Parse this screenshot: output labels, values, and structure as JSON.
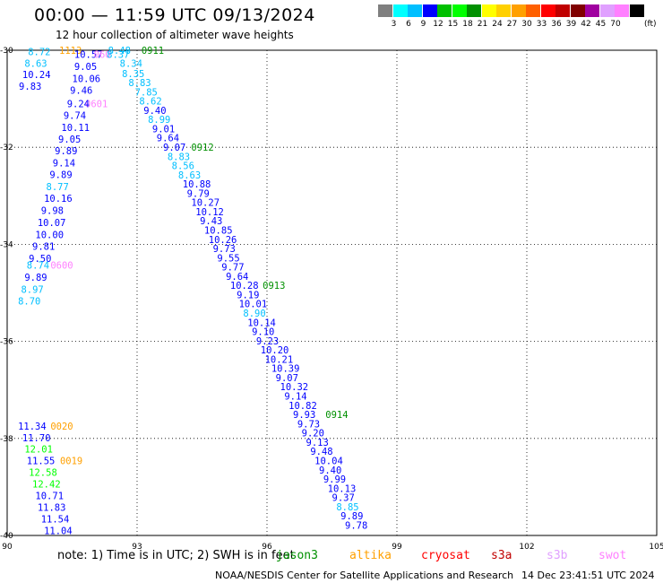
{
  "header": {
    "title": "00:00 — 11:59 UTC 09/13/2024",
    "subtitle": "12 hour collection of altimeter wave heights"
  },
  "colorbar": {
    "colors": [
      "#7f7f7f",
      "#00ffff",
      "#00bfff",
      "#0000ff",
      "#00c000",
      "#00ff00",
      "#009000",
      "#ffff00",
      "#ffd000",
      "#ffa000",
      "#ff6000",
      "#ff0000",
      "#c00000",
      "#800000",
      "#a000a0",
      "#e0a0ff",
      "#ff80ff",
      "#000000"
    ],
    "ticks": [
      "3",
      "6",
      "9",
      "12",
      "15",
      "18",
      "21",
      "24",
      "27",
      "30",
      "33",
      "36",
      "39",
      "42",
      "45",
      "70"
    ],
    "units": "(ft)"
  },
  "axes": {
    "x_ticks": [
      "90",
      "93",
      "96",
      "99",
      "102",
      "105"
    ],
    "y_ticks": [
      "-30",
      "-32",
      "-34",
      "-36",
      "-38",
      "-40"
    ]
  },
  "chart_data": {
    "type": "scatter",
    "title": "00:00 — 11:59 UTC 09/13/2024",
    "subtitle": "12 hour collection of altimeter wave heights",
    "xlim": [
      90,
      105
    ],
    "ylim": [
      -40,
      -30
    ],
    "units": "ft",
    "grid": true,
    "labels": [
      {
        "text": "8.72",
        "x": 90.48,
        "y": -30.1,
        "color": "#00bfff"
      },
      {
        "text": "8.63",
        "x": 90.4,
        "y": -30.34,
        "color": "#00bfff"
      },
      {
        "text": "10.24",
        "x": 90.35,
        "y": -30.57,
        "color": "#0000ff"
      },
      {
        "text": "9.83",
        "x": 90.27,
        "y": -30.81,
        "color": "#0000ff"
      },
      {
        "text": "1113",
        "x": 91.2,
        "y": -30.07,
        "color": "#ffa000"
      },
      {
        "text": "10.57",
        "x": 91.55,
        "y": -30.16,
        "color": "#0000ff"
      },
      {
        "text": "9.05",
        "x": 91.55,
        "y": -30.41,
        "color": "#0000ff"
      },
      {
        "text": "10.06",
        "x": 91.5,
        "y": -30.66,
        "color": "#0000ff"
      },
      {
        "text": "9.46",
        "x": 91.45,
        "y": -30.9,
        "color": "#0000ff"
      },
      {
        "text": "0601",
        "x": 91.8,
        "y": -31.17,
        "color": "#ff80ff"
      },
      {
        "text": "9.24",
        "x": 91.38,
        "y": -31.17,
        "color": "#0000ff"
      },
      {
        "text": "9.74",
        "x": 91.3,
        "y": -31.41,
        "color": "#0000ff"
      },
      {
        "text": "10.11",
        "x": 91.25,
        "y": -31.66,
        "color": "#0000ff"
      },
      {
        "text": "9.05",
        "x": 91.18,
        "y": -31.9,
        "color": "#0000ff"
      },
      {
        "text": "9.89",
        "x": 91.1,
        "y": -32.14,
        "color": "#0000ff"
      },
      {
        "text": "9.14",
        "x": 91.05,
        "y": -32.39,
        "color": "#0000ff"
      },
      {
        "text": "9.89",
        "x": 90.98,
        "y": -32.63,
        "color": "#0000ff"
      },
      {
        "text": "8.77",
        "x": 90.9,
        "y": -32.88,
        "color": "#00bfff"
      },
      {
        "text": "10.16",
        "x": 90.85,
        "y": -33.12,
        "color": "#0000ff"
      },
      {
        "text": "9.98",
        "x": 90.78,
        "y": -33.37,
        "color": "#0000ff"
      },
      {
        "text": "10.07",
        "x": 90.7,
        "y": -33.62,
        "color": "#0000ff"
      },
      {
        "text": "10.00",
        "x": 90.65,
        "y": -33.87,
        "color": "#0000ff"
      },
      {
        "text": "9.81",
        "x": 90.58,
        "y": -34.11,
        "color": "#0000ff"
      },
      {
        "text": "9.50",
        "x": 90.5,
        "y": -34.36,
        "color": "#0000ff"
      },
      {
        "text": "8.74",
        "x": 90.45,
        "y": -34.5,
        "color": "#00bfff"
      },
      {
        "text": "0600",
        "x": 91.0,
        "y": -34.5,
        "color": "#ff80ff"
      },
      {
        "text": "9.89",
        "x": 90.4,
        "y": -34.75,
        "color": "#0000ff"
      },
      {
        "text": "8.97",
        "x": 90.32,
        "y": -35.0,
        "color": "#00bfff"
      },
      {
        "text": "8.70",
        "x": 90.25,
        "y": -35.24,
        "color": "#00bfff"
      },
      {
        "text": "8.48",
        "x": 92.33,
        "y": -30.07,
        "color": "#00bfff"
      },
      {
        "text": "0911",
        "x": 93.1,
        "y": -30.07,
        "color": "#009000"
      },
      {
        "text": "060",
        "x": 92.0,
        "y": -30.16,
        "color": "#ff80ff"
      },
      {
        "text": "8.37",
        "x": 92.3,
        "y": -30.16,
        "color": "#00bfff"
      },
      {
        "text": "8.34",
        "x": 92.6,
        "y": -30.34,
        "color": "#00bfff"
      },
      {
        "text": "8.35",
        "x": 92.65,
        "y": -30.55,
        "color": "#00bfff"
      },
      {
        "text": "8.83",
        "x": 92.8,
        "y": -30.74,
        "color": "#00bfff"
      },
      {
        "text": "7.85",
        "x": 92.95,
        "y": -30.93,
        "color": "#00bfff"
      },
      {
        "text": "8.62",
        "x": 93.05,
        "y": -31.12,
        "color": "#00bfff"
      },
      {
        "text": "9.40",
        "x": 93.15,
        "y": -31.31,
        "color": "#0000ff"
      },
      {
        "text": "8.99",
        "x": 93.25,
        "y": -31.5,
        "color": "#00bfff"
      },
      {
        "text": "9.01",
        "x": 93.35,
        "y": -31.69,
        "color": "#0000ff"
      },
      {
        "text": "9.64",
        "x": 93.45,
        "y": -31.88,
        "color": "#0000ff"
      },
      {
        "text": "9.07",
        "x": 93.6,
        "y": -32.07,
        "color": "#0000ff"
      },
      {
        "text": "0912",
        "x": 94.25,
        "y": -32.07,
        "color": "#009000"
      },
      {
        "text": "8.83",
        "x": 93.7,
        "y": -32.26,
        "color": "#00bfff"
      },
      {
        "text": "8.56",
        "x": 93.8,
        "y": -32.45,
        "color": "#00bfff"
      },
      {
        "text": "8.63",
        "x": 93.95,
        "y": -32.64,
        "color": "#00bfff"
      },
      {
        "text": "10.88",
        "x": 94.05,
        "y": -32.83,
        "color": "#0000ff"
      },
      {
        "text": "9.79",
        "x": 94.15,
        "y": -33.02,
        "color": "#0000ff"
      },
      {
        "text": "10.27",
        "x": 94.25,
        "y": -33.21,
        "color": "#0000ff"
      },
      {
        "text": "10.12",
        "x": 94.35,
        "y": -33.4,
        "color": "#0000ff"
      },
      {
        "text": "9.43",
        "x": 94.45,
        "y": -33.59,
        "color": "#0000ff"
      },
      {
        "text": "10.85",
        "x": 94.55,
        "y": -33.78,
        "color": "#0000ff"
      },
      {
        "text": "10.26",
        "x": 94.65,
        "y": -33.97,
        "color": "#0000ff"
      },
      {
        "text": "9.73",
        "x": 94.75,
        "y": -34.16,
        "color": "#0000ff"
      },
      {
        "text": "9.55",
        "x": 94.85,
        "y": -34.35,
        "color": "#0000ff"
      },
      {
        "text": "9.77",
        "x": 94.95,
        "y": -34.54,
        "color": "#0000ff"
      },
      {
        "text": "9.64",
        "x": 95.05,
        "y": -34.73,
        "color": "#0000ff"
      },
      {
        "text": "10.28",
        "x": 95.15,
        "y": -34.92,
        "color": "#0000ff"
      },
      {
        "text": "0913",
        "x": 95.9,
        "y": -34.92,
        "color": "#009000"
      },
      {
        "text": "9.19",
        "x": 95.3,
        "y": -35.11,
        "color": "#0000ff"
      },
      {
        "text": "10.01",
        "x": 95.35,
        "y": -35.3,
        "color": "#0000ff"
      },
      {
        "text": "8.90",
        "x": 95.45,
        "y": -35.49,
        "color": "#00bfff"
      },
      {
        "text": "10.14",
        "x": 95.55,
        "y": -35.68,
        "color": "#0000ff"
      },
      {
        "text": "9.10",
        "x": 95.65,
        "y": -35.87,
        "color": "#0000ff"
      },
      {
        "text": "9.23",
        "x": 95.75,
        "y": -36.06,
        "color": "#0000ff"
      },
      {
        "text": "10.20",
        "x": 95.85,
        "y": -36.25,
        "color": "#0000ff"
      },
      {
        "text": "10.21",
        "x": 95.95,
        "y": -36.44,
        "color": "#0000ff"
      },
      {
        "text": "10.39",
        "x": 96.1,
        "y": -36.63,
        "color": "#0000ff"
      },
      {
        "text": "9.07",
        "x": 96.2,
        "y": -36.82,
        "color": "#0000ff"
      },
      {
        "text": "10.32",
        "x": 96.3,
        "y": -37.01,
        "color": "#0000ff"
      },
      {
        "text": "9.14",
        "x": 96.4,
        "y": -37.2,
        "color": "#0000ff"
      },
      {
        "text": "10.82",
        "x": 96.5,
        "y": -37.39,
        "color": "#0000ff"
      },
      {
        "text": "9.93",
        "x": 96.6,
        "y": -37.58,
        "color": "#0000ff"
      },
      {
        "text": "0914",
        "x": 97.35,
        "y": -37.58,
        "color": "#009000"
      },
      {
        "text": "9.73",
        "x": 96.7,
        "y": -37.77,
        "color": "#0000ff"
      },
      {
        "text": "9.20",
        "x": 96.8,
        "y": -37.96,
        "color": "#0000ff"
      },
      {
        "text": "9.13",
        "x": 96.9,
        "y": -38.15,
        "color": "#0000ff"
      },
      {
        "text": "9.48",
        "x": 97.0,
        "y": -38.34,
        "color": "#0000ff"
      },
      {
        "text": "10.04",
        "x": 97.1,
        "y": -38.53,
        "color": "#0000ff"
      },
      {
        "text": "9.40",
        "x": 97.2,
        "y": -38.72,
        "color": "#0000ff"
      },
      {
        "text": "9.99",
        "x": 97.3,
        "y": -38.91,
        "color": "#0000ff"
      },
      {
        "text": "10.13",
        "x": 97.4,
        "y": -39.1,
        "color": "#0000ff"
      },
      {
        "text": "9.37",
        "x": 97.5,
        "y": -39.29,
        "color": "#0000ff"
      },
      {
        "text": "8.85",
        "x": 97.6,
        "y": -39.48,
        "color": "#00bfff"
      },
      {
        "text": "9.89",
        "x": 97.7,
        "y": -39.67,
        "color": "#0000ff"
      },
      {
        "text": "9.78",
        "x": 97.8,
        "y": -39.86,
        "color": "#0000ff"
      },
      {
        "text": "11.34",
        "x": 90.25,
        "y": -37.82,
        "color": "#0000ff"
      },
      {
        "text": "0020",
        "x": 91.0,
        "y": -37.82,
        "color": "#ffa000"
      },
      {
        "text": "11.70",
        "x": 90.35,
        "y": -38.06,
        "color": "#0000ff"
      },
      {
        "text": "12.01",
        "x": 90.4,
        "y": -38.29,
        "color": "#00ff00"
      },
      {
        "text": "11.55",
        "x": 90.45,
        "y": -38.53,
        "color": "#0000ff"
      },
      {
        "text": "0019",
        "x": 91.22,
        "y": -38.53,
        "color": "#ffa000"
      },
      {
        "text": "12.58",
        "x": 90.5,
        "y": -38.77,
        "color": "#00ff00"
      },
      {
        "text": "12.42",
        "x": 90.58,
        "y": -39.01,
        "color": "#00ff00"
      },
      {
        "text": "10.71",
        "x": 90.65,
        "y": -39.25,
        "color": "#0000ff"
      },
      {
        "text": "11.83",
        "x": 90.7,
        "y": -39.49,
        "color": "#0000ff"
      },
      {
        "text": "11.54",
        "x": 90.78,
        "y": -39.73,
        "color": "#0000ff"
      },
      {
        "text": "11.04",
        "x": 90.85,
        "y": -39.97,
        "color": "#0000ff"
      }
    ]
  },
  "footer": {
    "note": "note: 1) Time is in UTC; 2) SWH is in feet",
    "satellites": [
      {
        "name": "jason3",
        "color": "#009000"
      },
      {
        "name": "altika",
        "color": "#ffa000"
      },
      {
        "name": "cryosat",
        "color": "#ff0000"
      },
      {
        "name": "s3a",
        "color": "#c00000"
      },
      {
        "name": "s3b",
        "color": "#e0a0ff"
      },
      {
        "name": "swot",
        "color": "#ff80ff"
      }
    ],
    "credit": "NOAA/NESDIS Center for Satellite Applications and Research",
    "timestamp": "14 Dec 23:41:51 UTC 2024"
  }
}
